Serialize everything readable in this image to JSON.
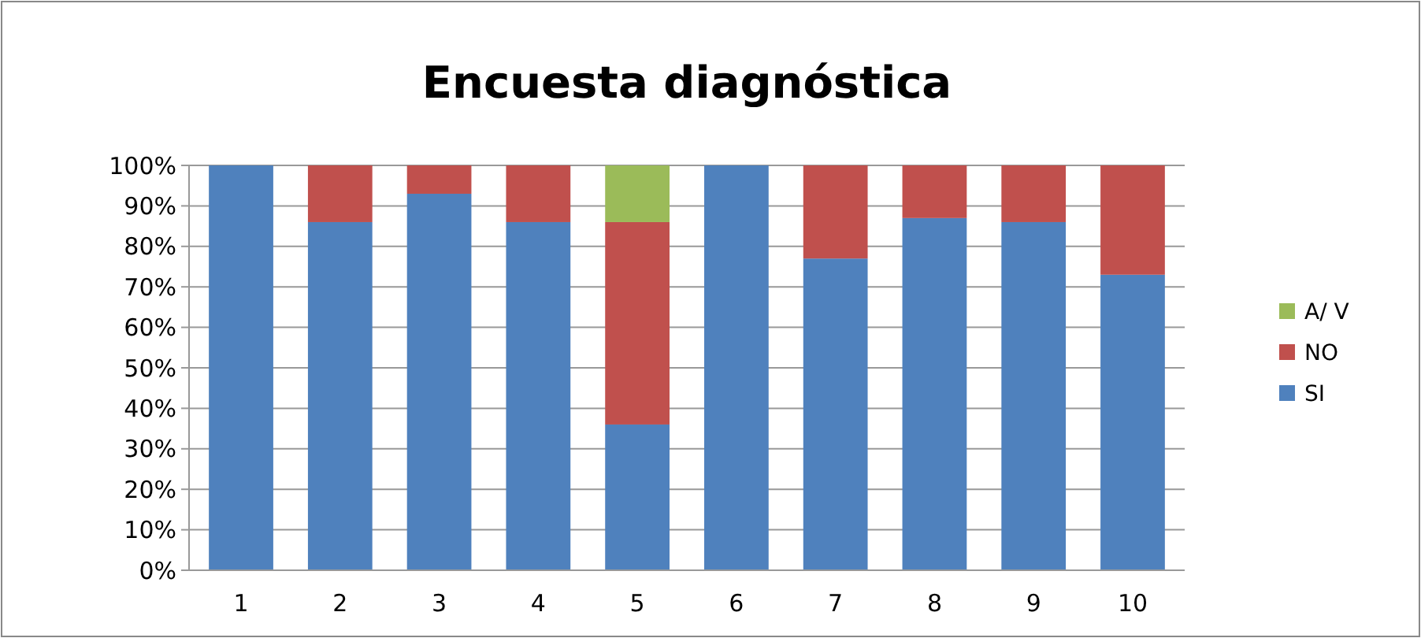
{
  "chart_data": {
    "type": "bar",
    "title": "Encuesta diagnóstica",
    "categories": [
      "1",
      "2",
      "3",
      "4",
      "5",
      "6",
      "7",
      "8",
      "9",
      "10"
    ],
    "stacked": true,
    "series": [
      {
        "name": "SI",
        "color": "#4f81bd",
        "values": [
          100,
          86,
          93,
          86,
          36,
          100,
          77,
          87,
          86,
          73
        ]
      },
      {
        "name": "NO",
        "color": "#c0504d",
        "values": [
          0,
          14,
          7,
          14,
          50,
          0,
          23,
          13,
          14,
          27
        ]
      },
      {
        "name": "A/ V",
        "color": "#9bbb59",
        "values": [
          0,
          0,
          0,
          0,
          14,
          0,
          0,
          0,
          0,
          0
        ]
      }
    ],
    "ylim": [
      0,
      100
    ],
    "yticks": [
      {
        "value": 0,
        "label": "0%"
      },
      {
        "value": 10,
        "label": "10%"
      },
      {
        "value": 20,
        "label": "20%"
      },
      {
        "value": 30,
        "label": "30%"
      },
      {
        "value": 40,
        "label": "40%"
      },
      {
        "value": 50,
        "label": "50%"
      },
      {
        "value": 60,
        "label": "60%"
      },
      {
        "value": 70,
        "label": "70%"
      },
      {
        "value": 80,
        "label": "80%"
      },
      {
        "value": 90,
        "label": "90%"
      },
      {
        "value": 100,
        "label": "100%"
      }
    ],
    "grid": "y",
    "legend": "right"
  }
}
